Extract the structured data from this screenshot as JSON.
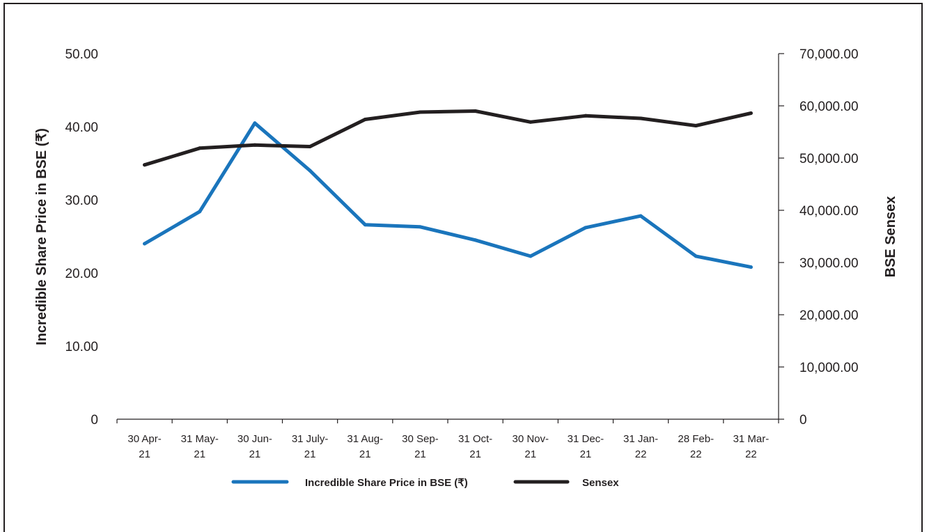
{
  "chart_data": {
    "type": "line",
    "x": [
      "30 Apr-21",
      "31 May-21",
      "30 Jun-21",
      "31 July-21",
      "31 Aug-21",
      "30 Sep-21",
      "31 Oct-21",
      "30 Nov-21",
      "31 Dec-21",
      "31 Jan-22",
      "28 Feb-22",
      "31 Mar-22"
    ],
    "x_tick_lines": [
      [
        "30 Apr-",
        "21"
      ],
      [
        "31 May-",
        "21"
      ],
      [
        "30 Jun-",
        "21"
      ],
      [
        "31 July-",
        "21"
      ],
      [
        "31 Aug-",
        "21"
      ],
      [
        "30 Sep-",
        "21"
      ],
      [
        "31 Oct-",
        "21"
      ],
      [
        "30 Nov-",
        "21"
      ],
      [
        "31 Dec-",
        "21"
      ],
      [
        "31 Jan-",
        "22"
      ],
      [
        "28 Feb-",
        "22"
      ],
      [
        "31 Mar-",
        "22"
      ]
    ],
    "series": [
      {
        "name": "Incredible Share Price in BSE (₹)",
        "axis": "left",
        "color": "#1a75bc",
        "values": [
          24.0,
          28.4,
          40.5,
          34.0,
          26.6,
          26.3,
          24.5,
          22.3,
          26.2,
          27.8,
          22.3,
          20.8
        ]
      },
      {
        "name": "Sensex",
        "axis": "right",
        "color": "#231f20",
        "values": [
          48700,
          51900,
          52500,
          52200,
          57400,
          58800,
          59000,
          56900,
          58100,
          57600,
          56200,
          58600
        ]
      }
    ],
    "ylabel": "Incredible Share Price in BSE (₹)",
    "ylim": [
      0,
      50
    ],
    "y_ticks": [
      "0",
      "10.00",
      "20.00",
      "30.00",
      "40.00",
      "50.00"
    ],
    "y2label": "BSE Sensex",
    "y2lim": [
      0,
      70000
    ],
    "y2_ticks": [
      "0",
      "10,000.00",
      "20,000.00",
      "30,000.00",
      "40,000.00",
      "50,000.00",
      "60,000.00",
      "70,000.00"
    ],
    "grid": false,
    "legend_position": "bottom-center"
  }
}
